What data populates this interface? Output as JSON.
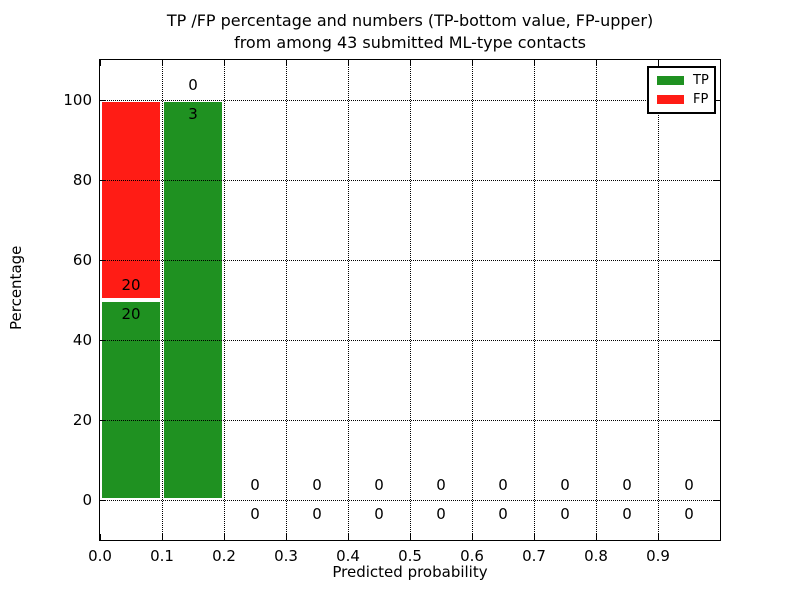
{
  "title": {
    "line1": "TP /FP percentage and numbers (TP-bottom value, FP-upper)",
    "line2": "from among 43 submitted ML-type contacts"
  },
  "axes": {
    "xlabel": "Predicted probability",
    "ylabel": "Percentage",
    "xlim": [
      0.0,
      1.0
    ],
    "ylim": [
      -10,
      110
    ],
    "xticks": [
      {
        "value": 0.0,
        "label": "0.0"
      },
      {
        "value": 0.1,
        "label": "0.1"
      },
      {
        "value": 0.2,
        "label": "0.2"
      },
      {
        "value": 0.3,
        "label": "0.3"
      },
      {
        "value": 0.4,
        "label": "0.4"
      },
      {
        "value": 0.5,
        "label": "0.5"
      },
      {
        "value": 0.6,
        "label": "0.6"
      },
      {
        "value": 0.7,
        "label": "0.7"
      },
      {
        "value": 0.8,
        "label": "0.8"
      },
      {
        "value": 0.9,
        "label": "0.9"
      }
    ],
    "yticks": [
      {
        "value": 0,
        "label": "0"
      },
      {
        "value": 20,
        "label": "20"
      },
      {
        "value": 40,
        "label": "40"
      },
      {
        "value": 60,
        "label": "60"
      },
      {
        "value": 80,
        "label": "80"
      },
      {
        "value": 100,
        "label": "100"
      }
    ],
    "grid": true,
    "grid_style": "dotted"
  },
  "legend": {
    "position": "upper right",
    "items": [
      {
        "label": "TP",
        "color": "#1f9121"
      },
      {
        "label": "FP",
        "color": "#ff1c15"
      }
    ]
  },
  "colors": {
    "tp": "#1f9121",
    "fp": "#ff1c15",
    "bar_edge": "#ffffff",
    "axis": "#000000",
    "text": "#000000",
    "background": "#ffffff"
  },
  "chart_data": {
    "type": "bar",
    "stacked": true,
    "title": "TP /FP percentage and numbers (TP-bottom value, FP-upper) from among 43 submitted ML-type contacts",
    "xlabel": "Predicted probability",
    "ylabel": "Percentage",
    "xlim": [
      0.0,
      1.0
    ],
    "ylim": [
      -10,
      110
    ],
    "grid": true,
    "legend_position": "upper right",
    "total_submitted_contacts": 43,
    "bin_edges": [
      0.0,
      0.1,
      0.2,
      0.3,
      0.4,
      0.5,
      0.6,
      0.7,
      0.8,
      0.9,
      1.0
    ],
    "categories": [
      "0.0-0.1",
      "0.1-0.2",
      "0.2-0.3",
      "0.3-0.4",
      "0.4-0.5",
      "0.5-0.6",
      "0.6-0.7",
      "0.7-0.8",
      "0.8-0.9",
      "0.9-1.0"
    ],
    "series": [
      {
        "name": "TP",
        "color": "#1f9121",
        "percent": [
          50,
          100,
          0,
          0,
          0,
          0,
          0,
          0,
          0,
          0
        ],
        "counts": [
          20,
          3,
          0,
          0,
          0,
          0,
          0,
          0,
          0,
          0
        ]
      },
      {
        "name": "FP",
        "color": "#ff1c15",
        "percent": [
          50,
          0,
          0,
          0,
          0,
          0,
          0,
          0,
          0,
          0
        ],
        "counts": [
          20,
          0,
          0,
          0,
          0,
          0,
          0,
          0,
          0,
          0
        ]
      }
    ],
    "annotation_rule": "TP count below segment boundary, FP count above segment boundary"
  }
}
